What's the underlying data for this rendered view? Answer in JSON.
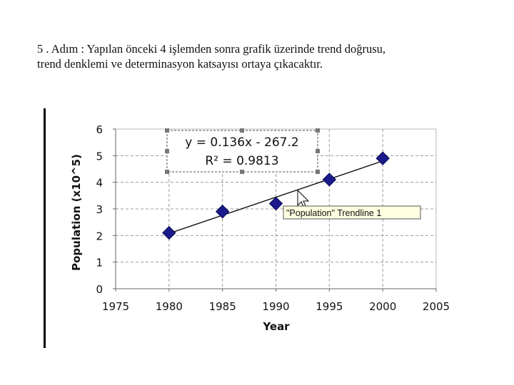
{
  "slide": {
    "line1": "5 . Adım : Yapılan önceki 4 işlemden sonra grafik üzerinde trend doğrusu,",
    "line2": "trend denklemi ve determinasyon katsayısı ortaya çıkacaktır."
  },
  "chart_data": {
    "type": "scatter",
    "xlabel": "Year",
    "ylabel": "Population (x10^5)",
    "xlim": [
      1975,
      2005
    ],
    "ylim": [
      0,
      6
    ],
    "x_ticks": [
      1975,
      1980,
      1985,
      1990,
      1995,
      2000,
      2005
    ],
    "y_ticks": [
      0,
      1,
      2,
      3,
      4,
      5,
      6
    ],
    "grid": "dashed",
    "series": [
      {
        "x": [
          1980,
          1985,
          1990,
          1995,
          2000
        ],
        "y": [
          2.1,
          2.9,
          3.2,
          4.1,
          4.9
        ],
        "color": "#1a1a8c",
        "marker": "diamond"
      }
    ],
    "trendline": {
      "slope": 0.136,
      "intercept": -267.2,
      "x_range": [
        1980,
        2000
      ],
      "equation": "y = 0.136x - 267.2",
      "r2_label": "R² = 0.9813"
    },
    "tooltip": "\"Population\" Trendline 1"
  }
}
